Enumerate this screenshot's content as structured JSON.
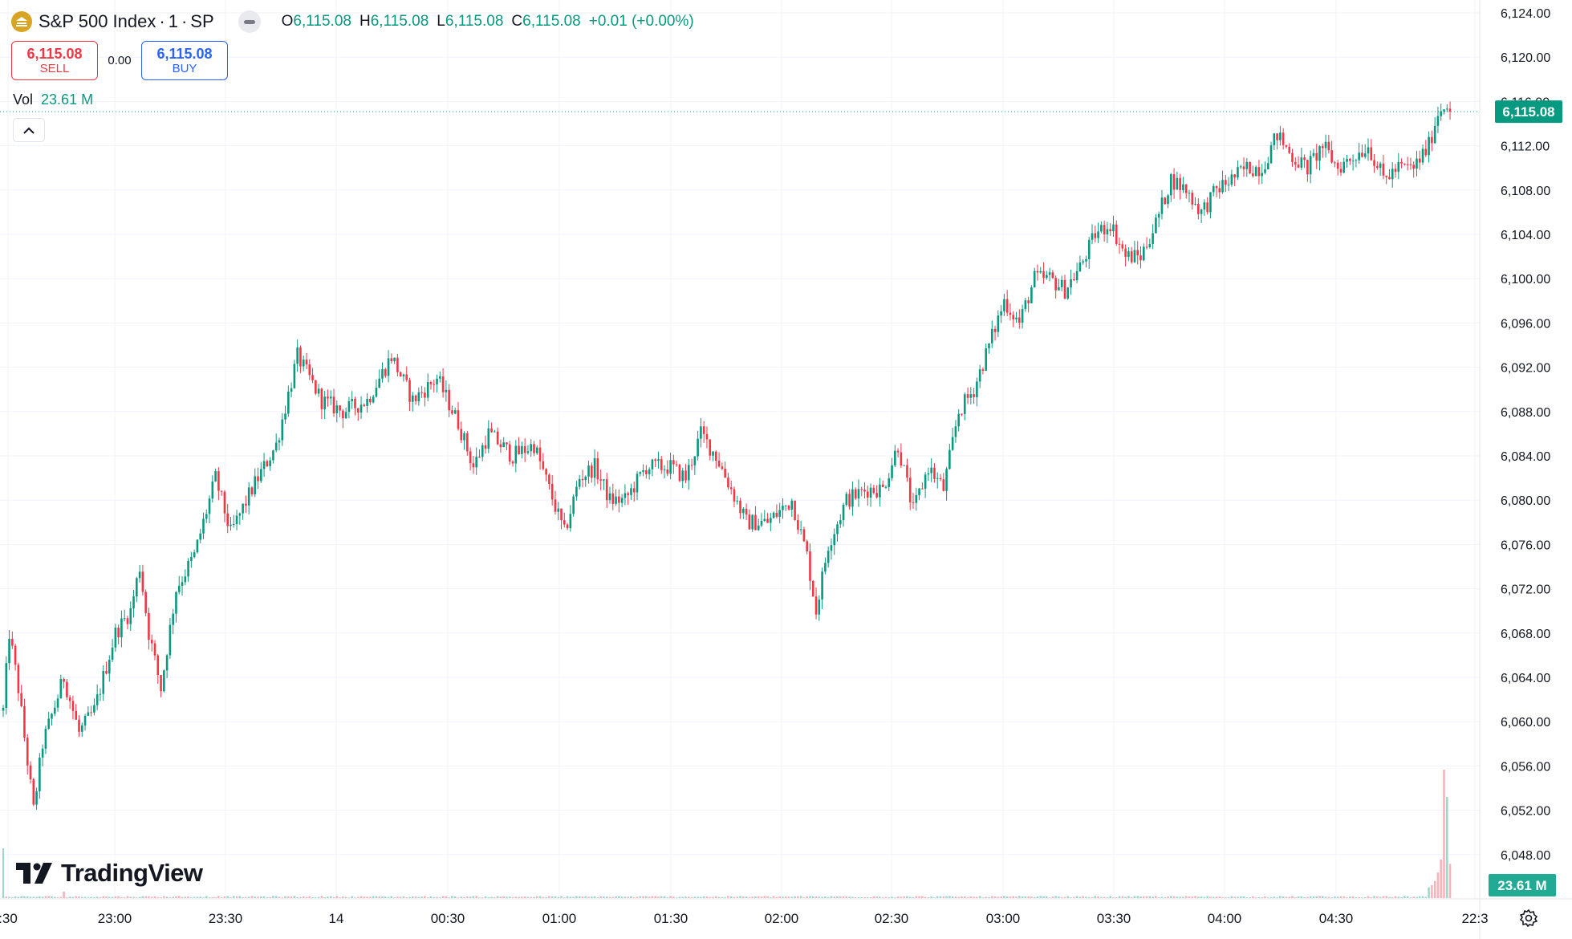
{
  "header": {
    "symbol": "S&P 500 Index",
    "sep1": "·",
    "interval": "1",
    "sep2": "·",
    "exchange": "SP",
    "open_label": "O",
    "open": "6,115.08",
    "high_label": "H",
    "high": "6,115.08",
    "low_label": "L",
    "low": "6,115.08",
    "close_label": "C",
    "close": "6,115.08",
    "change": "+0.01 (+0.00%)"
  },
  "trade": {
    "sell_price": "6,115.08",
    "sell_label": "SELL",
    "spread": "0.00",
    "buy_price": "6,115.08",
    "buy_label": "BUY"
  },
  "volume_legend": {
    "label": "Vol",
    "value": "23.61 M"
  },
  "price_tag": "6,115.08",
  "volume_tag": "23.61 M",
  "watermark": "TradingView",
  "colors": {
    "up": "#089981",
    "down": "#f23645",
    "grid": "#f0f3fa",
    "text": "#131722"
  },
  "chart_data": {
    "type": "candlestick",
    "y_ticks": [
      "6,124.00",
      "6,120.00",
      "6,116.00",
      "6,112.00",
      "6,108.00",
      "6,104.00",
      "6,100.00",
      "6,096.00",
      "6,092.00",
      "6,088.00",
      "6,084.00",
      "6,080.00",
      "6,076.00",
      "6,072.00",
      "6,068.00",
      "6,064.00",
      "6,060.00",
      "6,056.00",
      "6,052.00",
      "6,048.00"
    ],
    "x_ticks": [
      ":30",
      "23:00",
      "23:30",
      "14",
      "00:30",
      "01:00",
      "01:30",
      "02:00",
      "02:30",
      "03:00",
      "03:30",
      "04:00",
      "04:30",
      "22:3"
    ],
    "ylim": [
      6046,
      6125
    ],
    "last_price": 6115.08,
    "path_anchors": [
      [
        0,
        6061
      ],
      [
        2,
        6068
      ],
      [
        5,
        6063
      ],
      [
        10,
        6052
      ],
      [
        13,
        6058
      ],
      [
        20,
        6064
      ],
      [
        25,
        6059
      ],
      [
        30,
        6061
      ],
      [
        37,
        6068
      ],
      [
        42,
        6070
      ],
      [
        45,
        6074
      ],
      [
        48,
        6068
      ],
      [
        52,
        6063
      ],
      [
        57,
        6072
      ],
      [
        63,
        6075
      ],
      [
        70,
        6082
      ],
      [
        75,
        6077
      ],
      [
        82,
        6081
      ],
      [
        90,
        6085
      ],
      [
        97,
        6093
      ],
      [
        105,
        6089
      ],
      [
        112,
        6088
      ],
      [
        120,
        6089
      ],
      [
        128,
        6093
      ],
      [
        135,
        6089
      ],
      [
        143,
        6091
      ],
      [
        150,
        6087
      ],
      [
        155,
        6083
      ],
      [
        160,
        6086
      ],
      [
        168,
        6084
      ],
      [
        175,
        6085
      ],
      [
        180,
        6081
      ],
      [
        185,
        6077
      ],
      [
        190,
        6082
      ],
      [
        195,
        6083
      ],
      [
        200,
        6080
      ],
      [
        205,
        6080
      ],
      [
        212,
        6083
      ],
      [
        220,
        6083
      ],
      [
        225,
        6082
      ],
      [
        230,
        6086
      ],
      [
        235,
        6084
      ],
      [
        240,
        6081
      ],
      [
        245,
        6078
      ],
      [
        252,
        6078
      ],
      [
        260,
        6080
      ],
      [
        265,
        6075
      ],
      [
        268,
        6070
      ],
      [
        272,
        6076
      ],
      [
        278,
        6080
      ],
      [
        285,
        6081
      ],
      [
        290,
        6081
      ],
      [
        295,
        6085
      ],
      [
        300,
        6079
      ],
      [
        305,
        6083
      ],
      [
        310,
        6081
      ],
      [
        315,
        6088
      ],
      [
        320,
        6090
      ],
      [
        325,
        6094
      ],
      [
        330,
        6098
      ],
      [
        335,
        6096
      ],
      [
        340,
        6100
      ],
      [
        345,
        6100
      ],
      [
        350,
        6099
      ],
      [
        355,
        6101
      ],
      [
        360,
        6104
      ],
      [
        365,
        6105
      ],
      [
        370,
        6102
      ],
      [
        375,
        6102
      ],
      [
        380,
        6105
      ],
      [
        385,
        6109
      ],
      [
        390,
        6108
      ],
      [
        395,
        6106
      ],
      [
        400,
        6108
      ],
      [
        405,
        6109
      ],
      [
        410,
        6110
      ],
      [
        415,
        6110
      ],
      [
        420,
        6113
      ],
      [
        425,
        6111
      ],
      [
        430,
        6110
      ],
      [
        435,
        6112
      ],
      [
        440,
        6110
      ],
      [
        445,
        6111
      ],
      [
        450,
        6112
      ],
      [
        455,
        6109
      ],
      [
        460,
        6110
      ],
      [
        465,
        6110
      ],
      [
        470,
        6112
      ],
      [
        473,
        6115
      ],
      [
        476,
        6116
      ],
      [
        477,
        6115.08
      ]
    ],
    "volume": {
      "baseline_max": 0.5,
      "spike_values": [
        2.5,
        3,
        4,
        6,
        9,
        30,
        23.61,
        8
      ],
      "unit": "M"
    }
  }
}
